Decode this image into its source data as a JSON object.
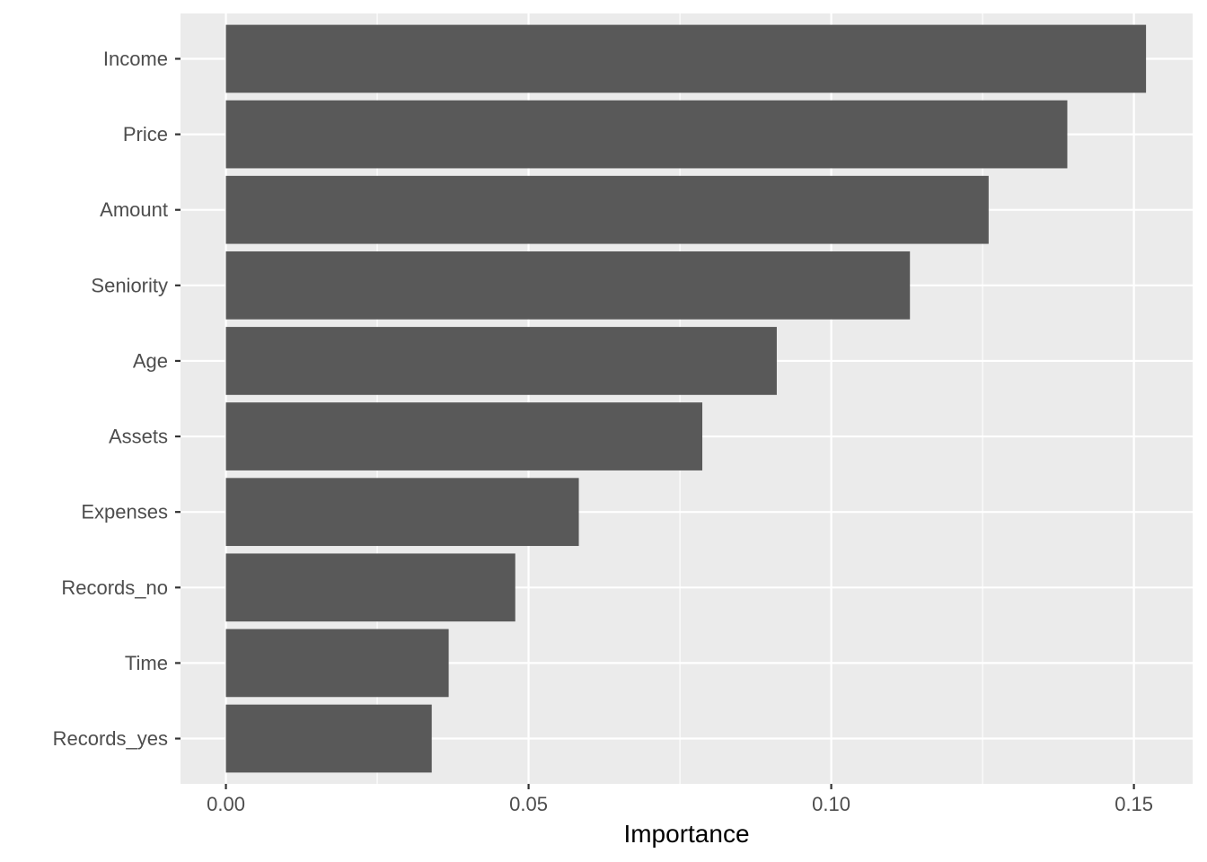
{
  "chart_data": {
    "type": "bar",
    "orientation": "horizontal",
    "categories": [
      "Income",
      "Price",
      "Amount",
      "Seniority",
      "Age",
      "Assets",
      "Expenses",
      "Records_no",
      "Time",
      "Records_yes"
    ],
    "values": [
      0.152,
      0.139,
      0.126,
      0.113,
      0.091,
      0.0787,
      0.0583,
      0.0478,
      0.0368,
      0.034
    ],
    "title": "",
    "xlabel": "Importance",
    "ylabel": "",
    "xlim": [
      -0.0075,
      0.1597
    ],
    "x_ticks": [
      0.0,
      0.05,
      0.1,
      0.15
    ],
    "x_tick_labels": [
      "0.00",
      "0.05",
      "0.10",
      "0.15"
    ],
    "grid": true,
    "colors": {
      "panel_background": "#ebebeb",
      "grid_line": "#ffffff",
      "bar_fill": "#595959",
      "tick_mark": "#333333",
      "tick_text": "#4d4d4d"
    }
  }
}
